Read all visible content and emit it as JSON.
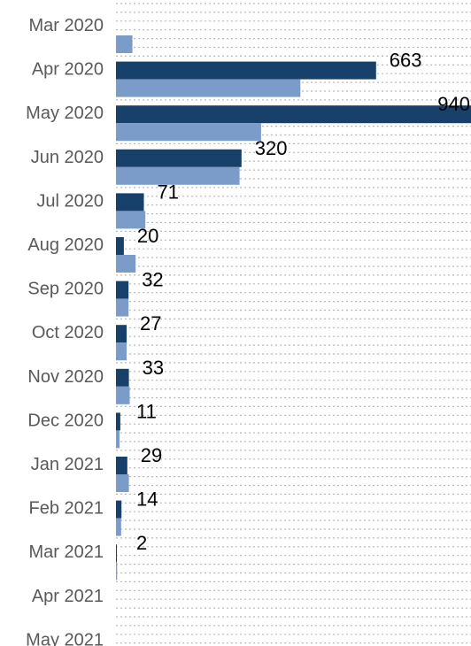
{
  "chart_data": {
    "type": "bar",
    "orientation": "horizontal",
    "categories": [
      "Mar 2020",
      "Apr 2020",
      "May 2020",
      "Jun 2020",
      "Jul 2020",
      "Aug 2020",
      "Sep 2020",
      "Oct 2020",
      "Nov 2020",
      "Dec 2020",
      "Jan 2021",
      "Feb 2021",
      "Mar 2021",
      "Apr 2021",
      "May 2021"
    ],
    "series": [
      {
        "color": "#17406b",
        "values": [
          null,
          663,
          940,
          320,
          71,
          20,
          32,
          27,
          33,
          11,
          29,
          14,
          2,
          null,
          null
        ],
        "data_labels": [
          "",
          "663",
          "940",
          "320",
          "71",
          "20",
          "32",
          "27",
          "33",
          "11",
          "29",
          "14",
          "2",
          "",
          ""
        ]
      },
      {
        "color": "#7b9cc9",
        "values": [
          42,
          470,
          370,
          315,
          75,
          50,
          32,
          27,
          35,
          9,
          33,
          13,
          3,
          null,
          null
        ]
      }
    ],
    "xlim": [
      0,
      905
    ],
    "grid": "dotted horizontal",
    "legend": "none"
  }
}
